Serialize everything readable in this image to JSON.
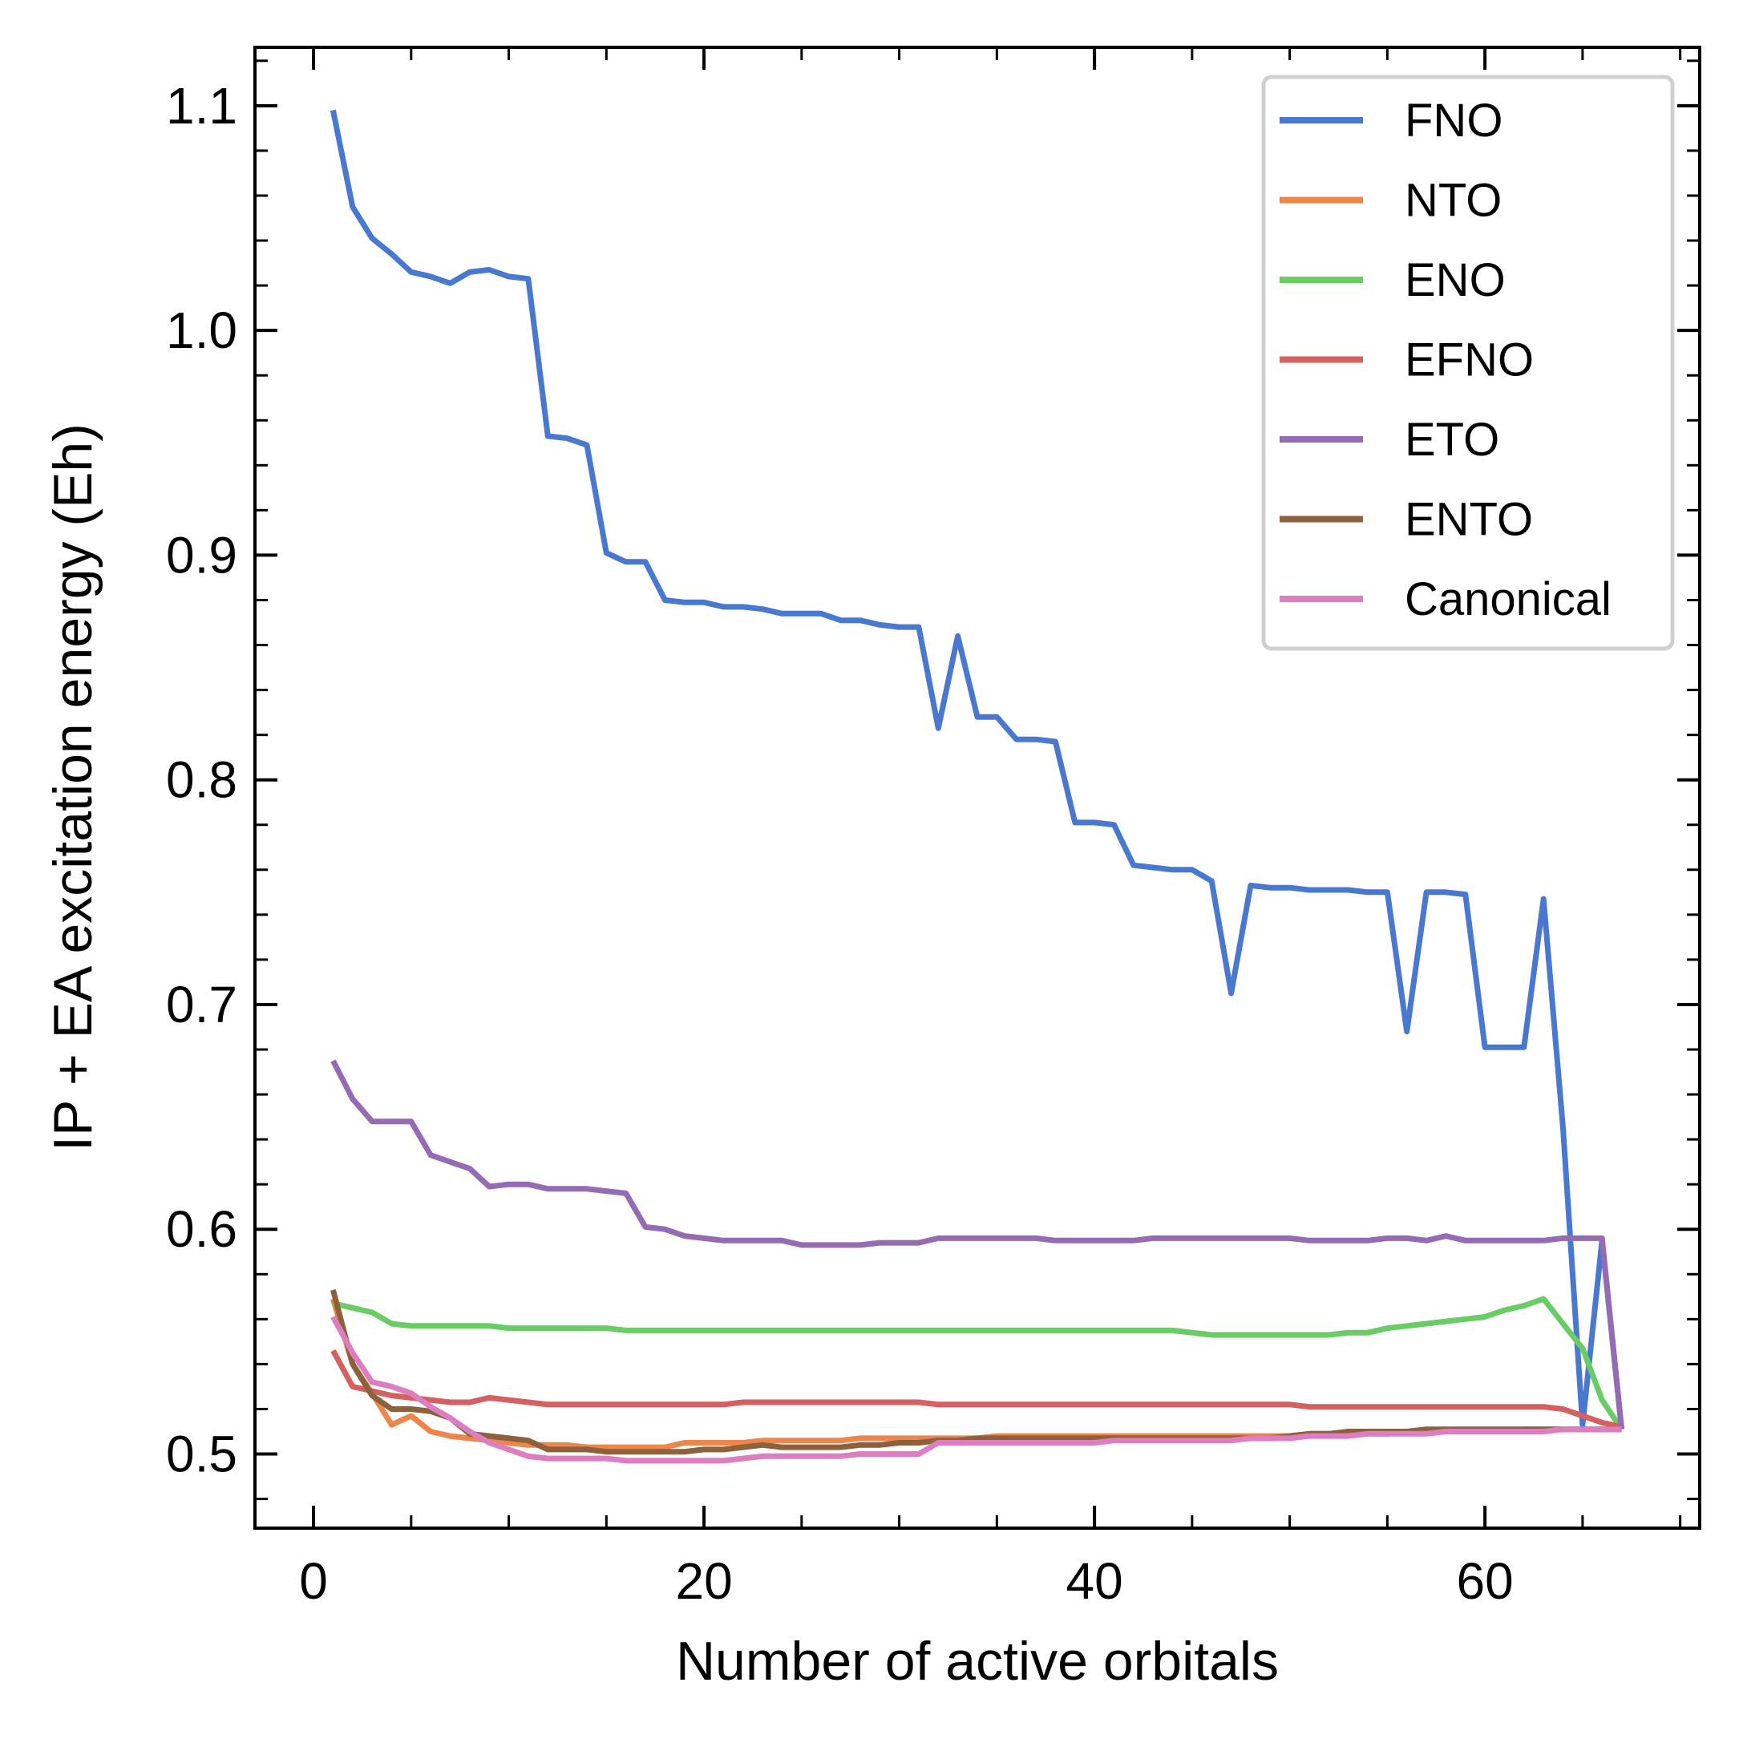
{
  "chart_data": {
    "type": "line",
    "xlabel": "Number of active orbitals",
    "ylabel": "IP + EA excitation energy (Eh)",
    "xlim": [
      -3,
      71
    ],
    "ylim": [
      0.467,
      1.126
    ],
    "xticks": [
      0,
      20,
      40,
      60
    ],
    "xtick_labels": [
      "0",
      "20",
      "40",
      "60"
    ],
    "xminor_step": 5,
    "yticks": [
      0.5,
      0.6,
      0.7,
      0.8,
      0.9,
      1.0,
      1.1
    ],
    "ytick_labels": [
      "0.5",
      "0.6",
      "0.7",
      "0.8",
      "0.9",
      "1.0",
      "1.1"
    ],
    "yminor_step": 0.02,
    "grid": false,
    "legend_position": "top-right",
    "series": [
      {
        "name": "FNO",
        "color": "#4878d0",
        "x": [
          1,
          2,
          3,
          4,
          5,
          6,
          7,
          8,
          9,
          10,
          11,
          12,
          13,
          14,
          15,
          16,
          17,
          18,
          19,
          20,
          21,
          22,
          23,
          24,
          25,
          26,
          27,
          28,
          29,
          30,
          31,
          32,
          33,
          34,
          35,
          36,
          37,
          38,
          39,
          40,
          41,
          42,
          43,
          44,
          45,
          46,
          47,
          48,
          49,
          50,
          51,
          52,
          53,
          54,
          55,
          56,
          57,
          58,
          59,
          60,
          61,
          62,
          63,
          64,
          65,
          66,
          67
        ],
        "y": [
          1.098,
          1.055,
          1.041,
          1.034,
          1.026,
          1.024,
          1.021,
          1.026,
          1.027,
          1.024,
          1.023,
          0.953,
          0.952,
          0.949,
          0.901,
          0.897,
          0.897,
          0.88,
          0.879,
          0.879,
          0.877,
          0.877,
          0.876,
          0.874,
          0.874,
          0.874,
          0.871,
          0.871,
          0.869,
          0.868,
          0.868,
          0.823,
          0.864,
          0.828,
          0.828,
          0.818,
          0.818,
          0.817,
          0.781,
          0.781,
          0.78,
          0.762,
          0.761,
          0.76,
          0.76,
          0.755,
          0.705,
          0.753,
          0.752,
          0.752,
          0.751,
          0.751,
          0.751,
          0.75,
          0.75,
          0.688,
          0.75,
          0.75,
          0.749,
          0.681,
          0.681,
          0.681,
          0.747,
          0.645,
          0.513,
          0.595,
          0.511
        ]
      },
      {
        "name": "NTO",
        "color": "#ee854a",
        "x": [
          1,
          2,
          3,
          4,
          5,
          6,
          7,
          8,
          9,
          10,
          11,
          12,
          13,
          14,
          15,
          16,
          17,
          18,
          19,
          20,
          21,
          22,
          23,
          24,
          25,
          26,
          27,
          28,
          29,
          30,
          31,
          32,
          33,
          34,
          35,
          36,
          37,
          38,
          39,
          40,
          41,
          42,
          43,
          44,
          45,
          46,
          47,
          48,
          49,
          50,
          51,
          52,
          53,
          54,
          55,
          56,
          57,
          58,
          59,
          60,
          61,
          62,
          63,
          64,
          65,
          66,
          67
        ],
        "y": [
          0.569,
          0.54,
          0.527,
          0.513,
          0.517,
          0.51,
          0.508,
          0.507,
          0.506,
          0.505,
          0.504,
          0.504,
          0.504,
          0.503,
          0.503,
          0.503,
          0.503,
          0.503,
          0.505,
          0.505,
          0.505,
          0.505,
          0.506,
          0.506,
          0.506,
          0.506,
          0.506,
          0.507,
          0.507,
          0.507,
          0.507,
          0.507,
          0.507,
          0.507,
          0.508,
          0.508,
          0.508,
          0.508,
          0.508,
          0.508,
          0.508,
          0.508,
          0.508,
          0.508,
          0.508,
          0.508,
          0.508,
          0.508,
          0.508,
          0.508,
          0.509,
          0.509,
          0.509,
          0.509,
          0.509,
          0.51,
          0.51,
          0.51,
          0.51,
          0.51,
          0.51,
          0.511,
          0.511,
          0.511,
          0.511,
          0.511,
          0.511
        ]
      },
      {
        "name": "ENO",
        "color": "#6acc64",
        "x": [
          1,
          2,
          3,
          4,
          5,
          6,
          7,
          8,
          9,
          10,
          11,
          12,
          13,
          14,
          15,
          16,
          17,
          18,
          19,
          20,
          21,
          22,
          23,
          24,
          25,
          26,
          27,
          28,
          29,
          30,
          31,
          32,
          33,
          34,
          35,
          36,
          37,
          38,
          39,
          40,
          41,
          42,
          43,
          44,
          45,
          46,
          47,
          48,
          49,
          50,
          51,
          52,
          53,
          54,
          55,
          56,
          57,
          58,
          59,
          60,
          61,
          62,
          63,
          64,
          65,
          66,
          67
        ],
        "y": [
          0.567,
          0.565,
          0.563,
          0.558,
          0.557,
          0.557,
          0.557,
          0.557,
          0.557,
          0.556,
          0.556,
          0.556,
          0.556,
          0.556,
          0.556,
          0.555,
          0.555,
          0.555,
          0.555,
          0.555,
          0.555,
          0.555,
          0.555,
          0.555,
          0.555,
          0.555,
          0.555,
          0.555,
          0.555,
          0.555,
          0.555,
          0.555,
          0.555,
          0.555,
          0.555,
          0.555,
          0.555,
          0.555,
          0.555,
          0.555,
          0.555,
          0.555,
          0.555,
          0.555,
          0.554,
          0.553,
          0.553,
          0.553,
          0.553,
          0.553,
          0.553,
          0.553,
          0.554,
          0.554,
          0.556,
          0.557,
          0.558,
          0.559,
          0.56,
          0.561,
          0.564,
          0.566,
          0.569,
          0.558,
          0.547,
          0.524,
          0.511
        ]
      },
      {
        "name": "EFNO",
        "color": "#d65f5f",
        "x": [
          1,
          2,
          3,
          4,
          5,
          6,
          7,
          8,
          9,
          10,
          11,
          12,
          13,
          14,
          15,
          16,
          17,
          18,
          19,
          20,
          21,
          22,
          23,
          24,
          25,
          26,
          27,
          28,
          29,
          30,
          31,
          32,
          33,
          34,
          35,
          36,
          37,
          38,
          39,
          40,
          41,
          42,
          43,
          44,
          45,
          46,
          47,
          48,
          49,
          50,
          51,
          52,
          53,
          54,
          55,
          56,
          57,
          58,
          59,
          60,
          61,
          62,
          63,
          64,
          65,
          66,
          67
        ],
        "y": [
          0.546,
          0.53,
          0.528,
          0.526,
          0.525,
          0.524,
          0.523,
          0.523,
          0.525,
          0.524,
          0.523,
          0.522,
          0.522,
          0.522,
          0.522,
          0.522,
          0.522,
          0.522,
          0.522,
          0.522,
          0.522,
          0.523,
          0.523,
          0.523,
          0.523,
          0.523,
          0.523,
          0.523,
          0.523,
          0.523,
          0.523,
          0.522,
          0.522,
          0.522,
          0.522,
          0.522,
          0.522,
          0.522,
          0.522,
          0.522,
          0.522,
          0.522,
          0.522,
          0.522,
          0.522,
          0.522,
          0.522,
          0.522,
          0.522,
          0.522,
          0.521,
          0.521,
          0.521,
          0.521,
          0.521,
          0.521,
          0.521,
          0.521,
          0.521,
          0.521,
          0.521,
          0.521,
          0.521,
          0.52,
          0.517,
          0.514,
          0.512
        ]
      },
      {
        "name": "ETO",
        "color": "#956cb4",
        "x": [
          1,
          2,
          3,
          4,
          5,
          6,
          7,
          8,
          9,
          10,
          11,
          12,
          13,
          14,
          15,
          16,
          17,
          18,
          19,
          20,
          21,
          22,
          23,
          24,
          25,
          26,
          27,
          28,
          29,
          30,
          31,
          32,
          33,
          34,
          35,
          36,
          37,
          38,
          39,
          40,
          41,
          42,
          43,
          44,
          45,
          46,
          47,
          48,
          49,
          50,
          51,
          52,
          53,
          54,
          55,
          56,
          57,
          58,
          59,
          60,
          61,
          62,
          63,
          64,
          65,
          66,
          67
        ],
        "y": [
          0.675,
          0.658,
          0.648,
          0.648,
          0.648,
          0.633,
          0.63,
          0.627,
          0.619,
          0.62,
          0.62,
          0.618,
          0.618,
          0.618,
          0.617,
          0.616,
          0.601,
          0.6,
          0.597,
          0.596,
          0.595,
          0.595,
          0.595,
          0.595,
          0.593,
          0.593,
          0.593,
          0.593,
          0.594,
          0.594,
          0.594,
          0.596,
          0.596,
          0.596,
          0.596,
          0.596,
          0.596,
          0.595,
          0.595,
          0.595,
          0.595,
          0.595,
          0.596,
          0.596,
          0.596,
          0.596,
          0.596,
          0.596,
          0.596,
          0.596,
          0.595,
          0.595,
          0.595,
          0.595,
          0.596,
          0.596,
          0.595,
          0.597,
          0.595,
          0.595,
          0.595,
          0.595,
          0.595,
          0.596,
          0.596,
          0.596,
          0.511
        ]
      },
      {
        "name": "ENTO",
        "color": "#8c613c",
        "x": [
          1,
          2,
          3,
          4,
          5,
          6,
          7,
          8,
          9,
          10,
          11,
          12,
          13,
          14,
          15,
          16,
          17,
          18,
          19,
          20,
          21,
          22,
          23,
          24,
          25,
          26,
          27,
          28,
          29,
          30,
          31,
          32,
          33,
          34,
          35,
          36,
          37,
          38,
          39,
          40,
          41,
          42,
          43,
          44,
          45,
          46,
          47,
          48,
          49,
          50,
          51,
          52,
          53,
          54,
          55,
          56,
          57,
          58,
          59,
          60,
          61,
          62,
          63,
          64,
          65,
          66,
          67
        ],
        "y": [
          0.573,
          0.54,
          0.526,
          0.52,
          0.52,
          0.519,
          0.516,
          0.509,
          0.508,
          0.507,
          0.506,
          0.502,
          0.502,
          0.502,
          0.501,
          0.501,
          0.501,
          0.501,
          0.501,
          0.502,
          0.502,
          0.503,
          0.504,
          0.503,
          0.503,
          0.503,
          0.503,
          0.504,
          0.504,
          0.505,
          0.505,
          0.506,
          0.506,
          0.507,
          0.507,
          0.507,
          0.507,
          0.507,
          0.507,
          0.507,
          0.507,
          0.507,
          0.507,
          0.507,
          0.507,
          0.507,
          0.507,
          0.507,
          0.507,
          0.508,
          0.509,
          0.509,
          0.51,
          0.51,
          0.51,
          0.51,
          0.511,
          0.511,
          0.511,
          0.511,
          0.511,
          0.511,
          0.511,
          0.511,
          0.511,
          0.511,
          0.511
        ]
      },
      {
        "name": "Canonical",
        "color": "#dc7ec0",
        "x": [
          1,
          2,
          3,
          4,
          5,
          6,
          7,
          8,
          9,
          10,
          11,
          12,
          13,
          14,
          15,
          16,
          17,
          18,
          19,
          20,
          21,
          22,
          23,
          24,
          25,
          26,
          27,
          28,
          29,
          30,
          31,
          32,
          33,
          34,
          35,
          36,
          37,
          38,
          39,
          40,
          41,
          42,
          43,
          44,
          45,
          46,
          47,
          48,
          49,
          50,
          51,
          52,
          53,
          54,
          55,
          56,
          57,
          58,
          59,
          60,
          61,
          62,
          63,
          64,
          65,
          66,
          67
        ],
        "y": [
          0.561,
          0.545,
          0.532,
          0.53,
          0.527,
          0.521,
          0.516,
          0.51,
          0.505,
          0.502,
          0.499,
          0.498,
          0.498,
          0.498,
          0.498,
          0.497,
          0.497,
          0.497,
          0.497,
          0.497,
          0.497,
          0.498,
          0.499,
          0.499,
          0.499,
          0.499,
          0.499,
          0.5,
          0.5,
          0.5,
          0.5,
          0.505,
          0.505,
          0.505,
          0.505,
          0.505,
          0.505,
          0.505,
          0.505,
          0.505,
          0.506,
          0.506,
          0.506,
          0.506,
          0.506,
          0.506,
          0.506,
          0.507,
          0.507,
          0.507,
          0.508,
          0.508,
          0.508,
          0.509,
          0.509,
          0.509,
          0.509,
          0.51,
          0.51,
          0.51,
          0.51,
          0.51,
          0.51,
          0.511,
          0.511,
          0.511,
          0.511
        ]
      }
    ]
  }
}
